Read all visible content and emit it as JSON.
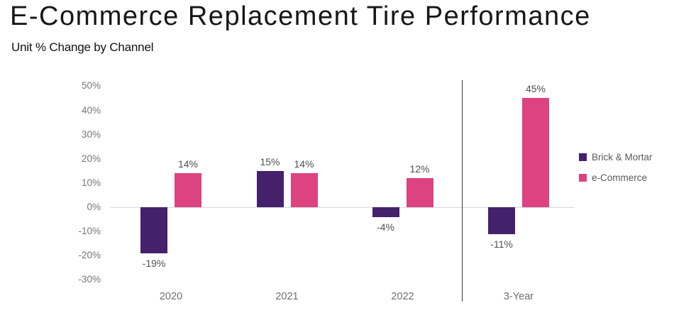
{
  "title": "E-Commerce Replacement Tire Performance",
  "subtitle": "Unit % Change by Channel",
  "chart_data": {
    "type": "bar",
    "title": "E-Commerce Replacement Tire Performance",
    "subtitle": "Unit % Change by Channel",
    "categories": [
      "2020",
      "2021",
      "2022",
      "3-Year"
    ],
    "series": [
      {
        "name": "Brick & Mortar",
        "color": "#45206B",
        "values": [
          -19,
          15,
          -4,
          -11
        ],
        "labels": [
          "-19%",
          "15%",
          "-4%",
          "-11%"
        ]
      },
      {
        "name": "e-Commerce",
        "color": "#DC4380",
        "values": [
          14,
          14,
          12,
          45
        ],
        "labels": [
          "14%",
          "14%",
          "12%",
          "45%"
        ]
      }
    ],
    "value_suffix": "%",
    "y_tick_labels": [
      "50%",
      "40%",
      "30%",
      "20%",
      "10%",
      "0%",
      "-10%",
      "-20%",
      "-30%"
    ],
    "y_ticks": [
      50,
      40,
      30,
      20,
      10,
      0,
      -10,
      -20,
      -30
    ],
    "ylim": [
      -30,
      50
    ],
    "xlabel": "",
    "ylabel": "",
    "grid": false,
    "zero_line": true,
    "divider_after_category": "2022",
    "legend_position": "right"
  }
}
